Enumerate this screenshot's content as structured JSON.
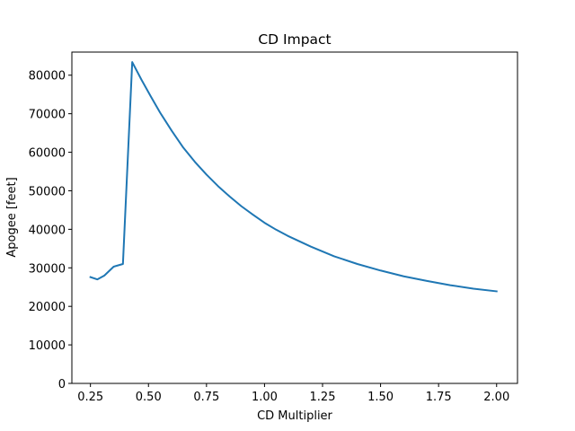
{
  "chart_data": {
    "type": "line",
    "title": "CD Impact",
    "xlabel": "CD Multiplier",
    "ylabel": "Apogee [feet]",
    "xlim": [
      0.17,
      2.09
    ],
    "ylim": [
      0,
      86000
    ],
    "xticks": [
      0.25,
      0.5,
      0.75,
      1.0,
      1.25,
      1.5,
      1.75,
      2.0
    ],
    "xtick_labels": [
      "0.25",
      "0.50",
      "0.75",
      "1.00",
      "1.25",
      "1.50",
      "1.75",
      "2.00"
    ],
    "yticks": [
      0,
      10000,
      20000,
      30000,
      40000,
      50000,
      60000,
      70000,
      80000
    ],
    "ytick_labels": [
      "0",
      "10000",
      "20000",
      "30000",
      "40000",
      "50000",
      "60000",
      "70000",
      "80000"
    ],
    "grid": false,
    "line_color": "#1f77b4",
    "series": [
      {
        "x": [
          0.25,
          0.28,
          0.31,
          0.35,
          0.39,
          0.43,
          0.47,
          0.51,
          0.55,
          0.6,
          0.65,
          0.7,
          0.75,
          0.8,
          0.85,
          0.9,
          0.95,
          1.0,
          1.05,
          1.1,
          1.2,
          1.3,
          1.4,
          1.5,
          1.6,
          1.7,
          1.8,
          1.9,
          2.0
        ],
        "values": [
          27600,
          27000,
          28000,
          30300,
          31000,
          83400,
          78800,
          74500,
          70300,
          65600,
          61200,
          57500,
          54200,
          51200,
          48500,
          46000,
          43800,
          41700,
          39900,
          38300,
          35500,
          33000,
          31000,
          29300,
          27800,
          26600,
          25500,
          24600,
          23900
        ]
      }
    ]
  }
}
